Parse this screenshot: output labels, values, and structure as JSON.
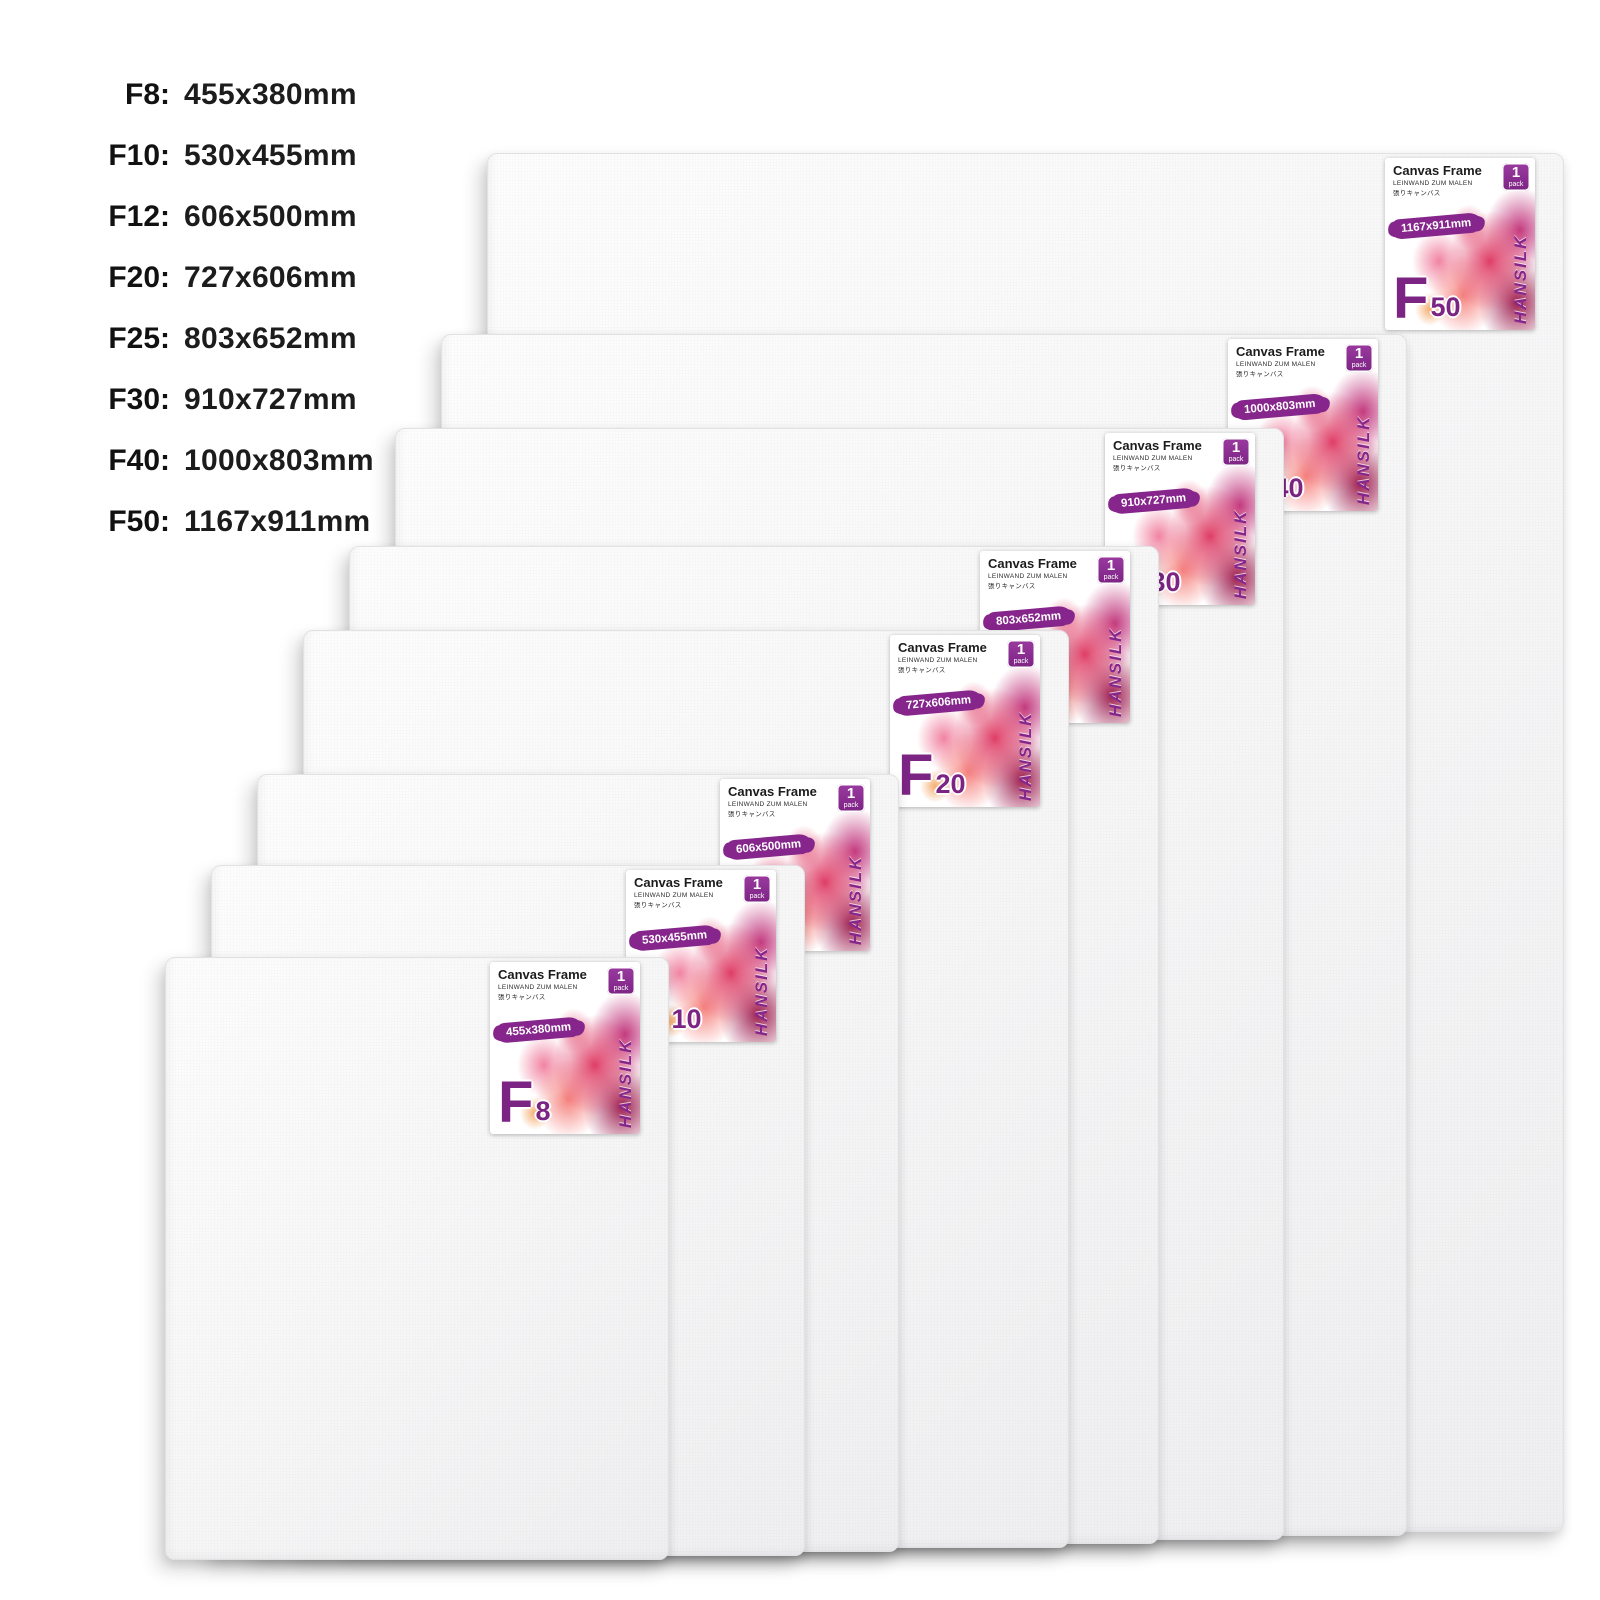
{
  "legend": {
    "items": [
      {
        "label": "F8:",
        "value": "455x380mm"
      },
      {
        "label": "F10:",
        "value": "530x455mm"
      },
      {
        "label": "F12:",
        "value": "606x500mm"
      },
      {
        "label": "F20:",
        "value": "727x606mm"
      },
      {
        "label": "F25:",
        "value": "803x652mm"
      },
      {
        "label": "F30:",
        "value": "910x727mm"
      },
      {
        "label": "F40:",
        "value": "1000x803mm"
      },
      {
        "label": "F50:",
        "value": "1167x911mm"
      }
    ]
  },
  "sticker": {
    "title": "Canvas Frame",
    "subtitle_de": "LEINWAND ZUM MALEN",
    "subtitle_jp": "張りキャンバス",
    "pack_count": "1",
    "pack_label": "pack",
    "brand": "HANSILK"
  },
  "canvases": [
    {
      "name": "F8",
      "letter": "F",
      "number": "8",
      "size": "455x380mm",
      "height_mm": 455,
      "width_mm": 380
    },
    {
      "name": "F10",
      "letter": "F",
      "number": "10",
      "size": "530x455mm",
      "height_mm": 530,
      "width_mm": 455
    },
    {
      "name": "F12",
      "letter": "F",
      "number": "12",
      "size": "606x500mm",
      "height_mm": 606,
      "width_mm": 500
    },
    {
      "name": "F20",
      "letter": "F",
      "number": "20",
      "size": "727x606mm",
      "height_mm": 727,
      "width_mm": 606
    },
    {
      "name": "F25",
      "letter": "F",
      "number": "25",
      "size": "803x652mm",
      "height_mm": 803,
      "width_mm": 652
    },
    {
      "name": "F30",
      "letter": "F",
      "number": "30",
      "size": "910x727mm",
      "height_mm": 910,
      "width_mm": 727
    },
    {
      "name": "F40",
      "letter": "F",
      "number": "40",
      "size": "1000x803mm",
      "height_mm": 1000,
      "width_mm": 803
    },
    {
      "name": "F50",
      "letter": "F",
      "number": "50",
      "size": "1167x911mm",
      "height_mm": 1167,
      "width_mm": 911
    }
  ],
  "colors": {
    "purple": "#86268c",
    "pink": "#e0457b",
    "red": "#c21f45",
    "legend_text": "#1a1a1a"
  }
}
